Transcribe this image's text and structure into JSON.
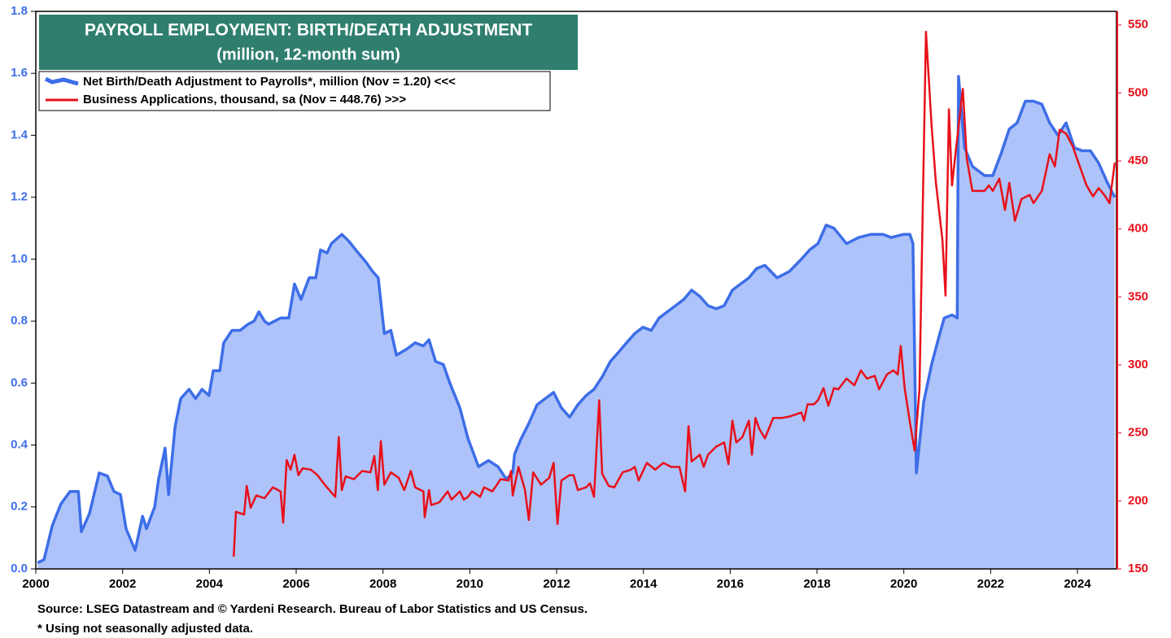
{
  "chart_data": {
    "type": "line",
    "title": "PAYROLL EMPLOYMENT: BIRTH/DEATH ADJUSTMENT",
    "subtitle": "(million, 12-month sum)",
    "source": "Source: LSEG Datastream and © Yardeni Research. Bureau of Labor Statistics and US Census.",
    "note": "* Using not seasonally adjusted data.",
    "xlim": [
      2000,
      2024.9
    ],
    "xticks": [
      2000,
      2002,
      2004,
      2006,
      2008,
      2010,
      2012,
      2014,
      2016,
      2018,
      2020,
      2022,
      2024
    ],
    "ylim": [
      0,
      1.8
    ],
    "yticks": [
      {
        "value": 0,
        "label": "0.0"
      },
      0.2,
      0.4,
      0.6,
      0.8,
      {
        "value": 1,
        "label": "1.0"
      },
      1.2,
      1.4,
      1.6,
      1.8
    ],
    "y2lim": [
      150,
      560
    ],
    "y2ticks": [
      150,
      200,
      250,
      300,
      350,
      400,
      450,
      500,
      550
    ],
    "legend": "top-left",
    "series": [
      {
        "name": "Net Birth/Death Adjustment to Payrolls*, million (Nov = 1.20) <<<",
        "color": "#3d6ee8",
        "fill": "#aec3f9",
        "axis": "y",
        "x": [
          2000.04,
          2000.19,
          2000.38,
          2000.58,
          2000.79,
          2000.98,
          2001.05,
          2001.24,
          2001.46,
          2001.65,
          2001.8,
          2001.95,
          2002.08,
          2002.29,
          2002.46,
          2002.55,
          2002.74,
          2002.83,
          2002.98,
          2003.06,
          2003.21,
          2003.34,
          2003.53,
          2003.68,
          2003.83,
          2003.99,
          2004.09,
          2004.24,
          2004.33,
          2004.52,
          2004.71,
          2004.89,
          2005.03,
          2005.14,
          2005.27,
          2005.36,
          2005.64,
          2005.83,
          2005.96,
          2006.11,
          2006.3,
          2006.45,
          2006.56,
          2006.71,
          2006.81,
          2007.05,
          2007.2,
          2007.43,
          2007.61,
          2007.76,
          2007.89,
          2008.03,
          2008.18,
          2008.31,
          2008.55,
          2008.74,
          2008.93,
          2009.06,
          2009.21,
          2009.39,
          2009.54,
          2009.77,
          2009.96,
          2010.2,
          2010.43,
          2010.65,
          2010.84,
          2010.99,
          2011.03,
          2011.18,
          2011.36,
          2011.55,
          2011.74,
          2011.93,
          2012.11,
          2012.3,
          2012.49,
          2012.68,
          2012.86,
          2013.05,
          2013.24,
          2013.43,
          2013.61,
          2013.8,
          2013.99,
          2014.18,
          2014.36,
          2014.55,
          2014.74,
          2014.93,
          2015.11,
          2015.3,
          2015.49,
          2015.68,
          2015.86,
          2016.05,
          2016.24,
          2016.43,
          2016.61,
          2016.8,
          2017.08,
          2017.36,
          2017.64,
          2017.83,
          2018.02,
          2018.21,
          2018.39,
          2018.68,
          2018.96,
          2019.24,
          2019.52,
          2019.71,
          2019.99,
          2020.14,
          2020.21,
          2020.29,
          2020.46,
          2020.64,
          2020.83,
          2020.93,
          2021.11,
          2021.23,
          2021.26,
          2021.4,
          2021.58,
          2021.86,
          2022.05,
          2022.24,
          2022.43,
          2022.61,
          2022.8,
          2022.99,
          2023.18,
          2023.36,
          2023.55,
          2023.74,
          2023.93,
          2024.11,
          2024.3,
          2024.49,
          2024.68,
          2024.86
        ],
        "values": [
          0.02,
          0.03,
          0.14,
          0.21,
          0.25,
          0.25,
          0.12,
          0.18,
          0.31,
          0.3,
          0.25,
          0.24,
          0.13,
          0.06,
          0.17,
          0.13,
          0.2,
          0.29,
          0.39,
          0.24,
          0.46,
          0.55,
          0.58,
          0.55,
          0.58,
          0.56,
          0.64,
          0.64,
          0.73,
          0.77,
          0.77,
          0.79,
          0.8,
          0.83,
          0.8,
          0.79,
          0.81,
          0.81,
          0.92,
          0.87,
          0.94,
          0.94,
          1.03,
          1.02,
          1.05,
          1.08,
          1.06,
          1.02,
          0.99,
          0.96,
          0.94,
          0.76,
          0.77,
          0.69,
          0.71,
          0.73,
          0.72,
          0.74,
          0.67,
          0.66,
          0.6,
          0.52,
          0.42,
          0.33,
          0.35,
          0.33,
          0.29,
          0.31,
          0.37,
          0.42,
          0.47,
          0.53,
          0.55,
          0.57,
          0.52,
          0.49,
          0.53,
          0.56,
          0.58,
          0.62,
          0.67,
          0.7,
          0.73,
          0.76,
          0.78,
          0.77,
          0.81,
          0.83,
          0.85,
          0.87,
          0.9,
          0.88,
          0.85,
          0.84,
          0.85,
          0.9,
          0.92,
          0.94,
          0.97,
          0.98,
          0.94,
          0.96,
          1,
          1.03,
          1.05,
          1.11,
          1.1,
          1.05,
          1.07,
          1.08,
          1.08,
          1.07,
          1.08,
          1.08,
          1.05,
          0.31,
          0.54,
          0.66,
          0.76,
          0.81,
          0.82,
          0.81,
          1.59,
          1.36,
          1.3,
          1.27,
          1.27,
          1.34,
          1.42,
          1.44,
          1.51,
          1.51,
          1.5,
          1.44,
          1.4,
          1.44,
          1.36,
          1.35,
          1.35,
          1.31,
          1.25,
          1.2
        ]
      },
      {
        "name": "Business Applications, thousand, sa (Nov = 448.76) >>>",
        "color": "#e8101a",
        "axis": "y2",
        "x": [
          2004.56,
          2004.61,
          2004.8,
          2004.86,
          2004.95,
          2005.08,
          2005.27,
          2005.46,
          2005.64,
          2005.7,
          2005.78,
          2005.87,
          2005.96,
          2006.05,
          2006.15,
          2006.34,
          2006.49,
          2006.68,
          2006.9,
          2006.98,
          2007.05,
          2007.14,
          2007.33,
          2007.52,
          2007.71,
          2007.8,
          2007.88,
          2007.95,
          2008.03,
          2008.18,
          2008.36,
          2008.49,
          2008.64,
          2008.74,
          2008.93,
          2008.96,
          2009.06,
          2009.11,
          2009.3,
          2009.49,
          2009.58,
          2009.77,
          2009.86,
          2009.96,
          2010.05,
          2010.24,
          2010.33,
          2010.52,
          2010.71,
          2010.89,
          2010.95,
          2010.99,
          2011.12,
          2011.27,
          2011.36,
          2011.46,
          2011.64,
          2011.83,
          2011.93,
          2012.02,
          2012.11,
          2012.3,
          2012.39,
          2012.49,
          2012.68,
          2012.77,
          2012.86,
          2012.98,
          2013.05,
          2013.2,
          2013.33,
          2013.52,
          2013.71,
          2013.8,
          2013.89,
          2014.08,
          2014.27,
          2014.46,
          2014.64,
          2014.83,
          2014.96,
          2015.04,
          2015.11,
          2015.3,
          2015.39,
          2015.49,
          2015.68,
          2015.86,
          2015.96,
          2016.05,
          2016.14,
          2016.28,
          2016.43,
          2016.5,
          2016.58,
          2016.67,
          2016.8,
          2016.99,
          2017.18,
          2017.36,
          2017.64,
          2017.7,
          2017.78,
          2017.93,
          2018.02,
          2018.15,
          2018.26,
          2018.39,
          2018.49,
          2018.68,
          2018.86,
          2019.01,
          2019.15,
          2019.33,
          2019.43,
          2019.61,
          2019.76,
          2019.86,
          2019.93,
          2020.02,
          2020.14,
          2020.25,
          2020.36,
          2020.51,
          2020.64,
          2020.74,
          2020.89,
          2020.96,
          2021.04,
          2021.11,
          2021.21,
          2021.36,
          2021.45,
          2021.58,
          2021.86,
          2021.96,
          2022.05,
          2022.2,
          2022.33,
          2022.43,
          2022.56,
          2022.71,
          2022.9,
          2022.99,
          2023.18,
          2023.36,
          2023.48,
          2023.59,
          2023.74,
          2023.89,
          2024.02,
          2024.21,
          2024.36,
          2024.49,
          2024.62,
          2024.74,
          2024.86
        ],
        "values": [
          159,
          192,
          190,
          211,
          195,
          204,
          202,
          210,
          207,
          184,
          230,
          223,
          234,
          219,
          224,
          223,
          219,
          211,
          203,
          247,
          208,
          218,
          216,
          222,
          221,
          233,
          208,
          244,
          212,
          221,
          217,
          208,
          222,
          210,
          207,
          188,
          208,
          197,
          199,
          207,
          201,
          207,
          201,
          203,
          207,
          203,
          210,
          207,
          216,
          215,
          222,
          204,
          225,
          208,
          186,
          221,
          212,
          217,
          228,
          183,
          215,
          219,
          219,
          208,
          210,
          213,
          203,
          274,
          220,
          211,
          210,
          221,
          223,
          225,
          215,
          228,
          223,
          228,
          225,
          225,
          207,
          255,
          229,
          234,
          225,
          234,
          240,
          243,
          227,
          259,
          243,
          247,
          259,
          234,
          261,
          253,
          246,
          261,
          261,
          262,
          265,
          259,
          271,
          271,
          274,
          283,
          270,
          283,
          282,
          290,
          285,
          296,
          290,
          292,
          282,
          293,
          296,
          293,
          314,
          283,
          258,
          237,
          282,
          545,
          476,
          434,
          392,
          351,
          488,
          432,
          461,
          503,
          452,
          428,
          428,
          432,
          428,
          437,
          414,
          434,
          406,
          422,
          425,
          419,
          428,
          455,
          446,
          473,
          470,
          461,
          449,
          432,
          424,
          430,
          425,
          419,
          448.76
        ]
      }
    ]
  }
}
